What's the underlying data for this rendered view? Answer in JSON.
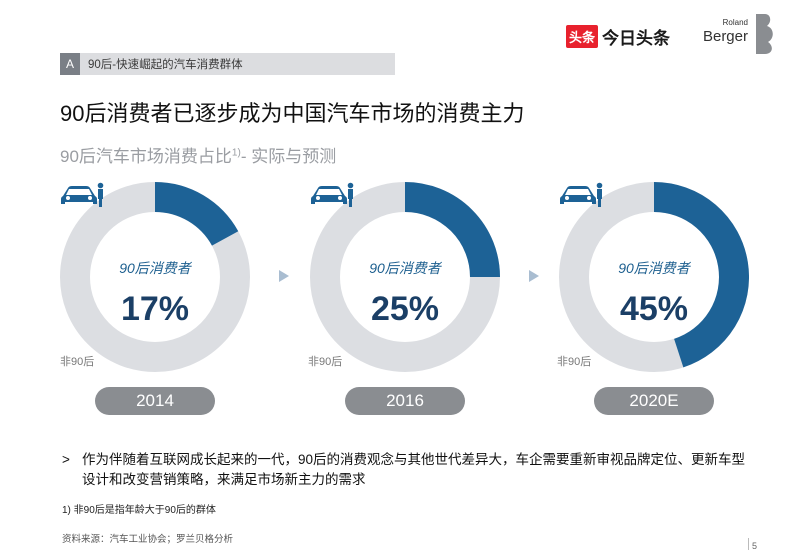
{
  "section": {
    "letter": "A",
    "label": "90后-快速崛起的汽车消费群体"
  },
  "logos": {
    "toutiao_box": "头条",
    "toutiao_text": "今日头条",
    "rb_small": "Roland",
    "rb_large": "Berger"
  },
  "title": "90后消费者已逐步成为中国汽车市场的消费主力",
  "subtitle": {
    "text": "90后汽车市场消费占比",
    "sup": "1)",
    "suffix": "- 实际与预测"
  },
  "colors": {
    "accent": "#1d6296",
    "ring_bg": "#dcdee2",
    "pill": "#8a8d91"
  },
  "chart_data": {
    "type": "pie",
    "charts": [
      {
        "year": "2014",
        "segment_label": "90后消费者",
        "value": 17,
        "value_label": "17%",
        "other_label": "非90后"
      },
      {
        "year": "2016",
        "segment_label": "90后消费者",
        "value": 25,
        "value_label": "25%",
        "other_label": "非90后"
      },
      {
        "year": "2020E",
        "segment_label": "90后消费者",
        "value": 45,
        "value_label": "45%",
        "other_label": "非90后"
      }
    ]
  },
  "bullet": {
    "mark": ">",
    "text": "作为伴随着互联网成长起来的一代，90后的消费观念与其他世代差异大，车企需要重新审视品牌定位、更新车型设计和改变营销策略，来满足市场新主力的需求"
  },
  "footnote": "1) 非90后是指年龄大于90后的群体",
  "source": "资料来源：汽车工业协会；罗兰贝格分析",
  "page_number": "5"
}
